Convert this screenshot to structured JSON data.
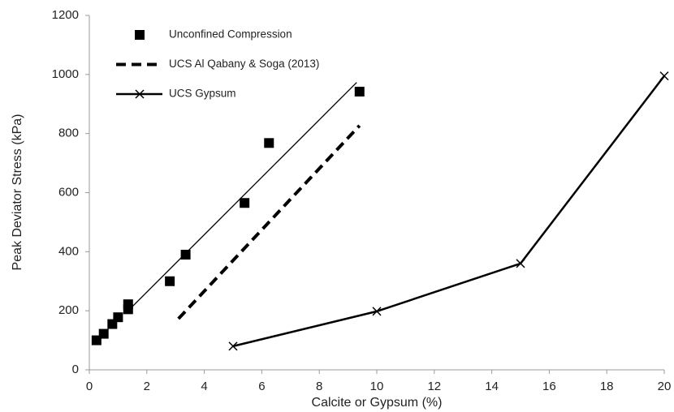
{
  "chart_data": {
    "type": "scatter-line",
    "x_label": "Calcite or Gypsum  (%)",
    "y_label": "Peak Deviator Stress (kPa)",
    "xlim": [
      0,
      20
    ],
    "xticks": [
      0,
      2,
      4,
      6,
      8,
      10,
      12,
      14,
      16,
      18,
      20
    ],
    "ylim": [
      0,
      1200
    ],
    "yticks": [
      0,
      200,
      400,
      600,
      800,
      1000,
      1200
    ],
    "legend": "top-left",
    "series": [
      {
        "name": "Unconfined Compression",
        "color": "#000000",
        "marker": "square",
        "line": "none",
        "x": [
          0.25,
          0.5,
          0.8,
          1.0,
          1.35,
          1.35,
          2.8,
          3.35,
          5.4,
          6.25,
          9.4
        ],
        "values": [
          100,
          122,
          155,
          178,
          205,
          222,
          300,
          390,
          565,
          768,
          942
        ]
      },
      {
        "name": "UCS Al Qabany & Soga (2013)",
        "color": "#000000",
        "marker": "none",
        "line": "dashed",
        "x": [
          3.1,
          9.4
        ],
        "values": [
          173,
          827
        ]
      },
      {
        "name": "UCS Gypsum",
        "color": "#000000",
        "marker": "x",
        "line": "solid",
        "x": [
          5,
          10,
          15,
          20
        ],
        "values": [
          80,
          198,
          360,
          995
        ]
      }
    ],
    "trendline": {
      "color": "#000000",
      "x": [
        1.35,
        9.3
      ],
      "values": [
        200,
        973
      ]
    }
  }
}
